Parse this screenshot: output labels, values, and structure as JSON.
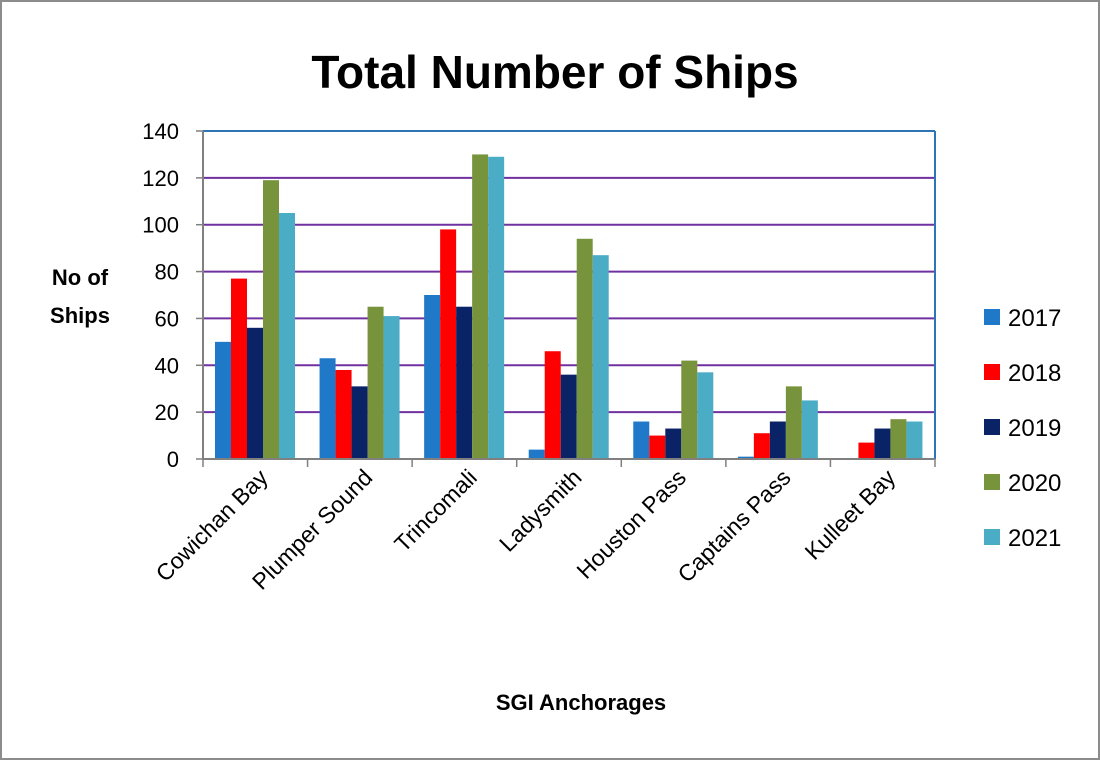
{
  "chart_data": {
    "type": "bar",
    "title": "Total Number of Ships",
    "xlabel": "SGI Anchorages",
    "ylabel_lines": [
      "No of",
      "Ships"
    ],
    "ylim": [
      0,
      140
    ],
    "yticks": [
      "0",
      "20",
      "40",
      "60",
      "80",
      "100",
      "120",
      "140"
    ],
    "categories": [
      "Cowichan Bay",
      "Plumper Sound",
      "Trincomali",
      "Ladysmith",
      "Houston Pass",
      "Captains Pass",
      "Kulleet Bay"
    ],
    "series": [
      {
        "name": "2017",
        "color": "#1f78c8",
        "values": [
          50,
          43,
          70,
          4,
          16,
          1,
          0
        ]
      },
      {
        "name": "2018",
        "color": "#ff0000",
        "values": [
          77,
          38,
          98,
          46,
          10,
          11,
          7
        ]
      },
      {
        "name": "2019",
        "color": "#0a2366",
        "values": [
          56,
          31,
          65,
          36,
          13,
          16,
          13
        ]
      },
      {
        "name": "2020",
        "color": "#77933c",
        "values": [
          119,
          65,
          130,
          94,
          42,
          31,
          17
        ]
      },
      {
        "name": "2021",
        "color": "#4bacc6",
        "values": [
          105,
          61,
          129,
          87,
          37,
          25,
          16
        ]
      }
    ],
    "grid": true,
    "gridline_color": "#7030a0",
    "plot_border_color": "#2e75b6",
    "legend_position": "right"
  }
}
